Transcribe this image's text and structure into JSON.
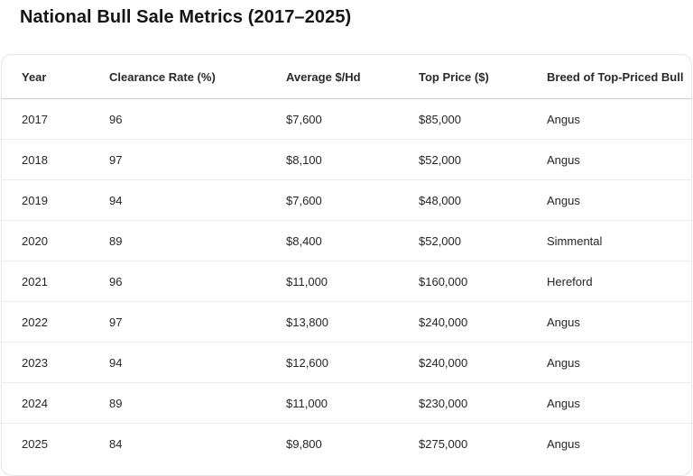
{
  "title": "National Bull Sale Metrics (2017–2025)",
  "table": {
    "columns": [
      "Year",
      "Clearance Rate (%)",
      "Average $/Hd",
      "Top Price ($)",
      "Breed of Top-Priced Bull"
    ],
    "rows": [
      [
        "2017",
        "96",
        "$7,600",
        "$85,000",
        "Angus"
      ],
      [
        "2018",
        "97",
        "$8,100",
        "$52,000",
        "Angus"
      ],
      [
        "2019",
        "94",
        "$7,600",
        "$48,000",
        "Angus"
      ],
      [
        "2020",
        "89",
        "$8,400",
        "$52,000",
        "Simmental"
      ],
      [
        "2021",
        "96",
        "$11,000",
        "$160,000",
        "Hereford"
      ],
      [
        "2022",
        "97",
        "$13,800",
        "$240,000",
        "Angus"
      ],
      [
        "2023",
        "94",
        "$12,600",
        "$240,000",
        "Angus"
      ],
      [
        "2024",
        "89",
        "$11,000",
        "$230,000",
        "Angus"
      ],
      [
        "2025",
        "84",
        "$9,800",
        "$275,000",
        "Angus"
      ]
    ]
  }
}
